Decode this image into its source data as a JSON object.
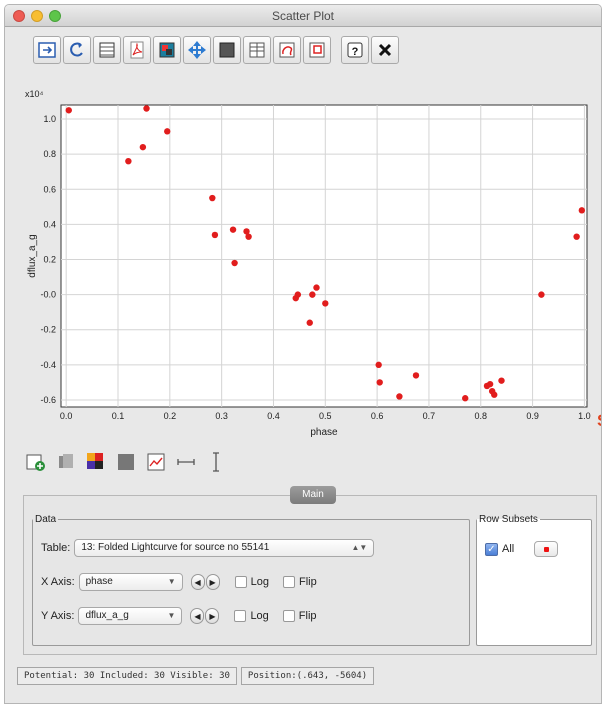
{
  "window": {
    "title": "Scatter Plot"
  },
  "toolbar": {
    "buttons": [
      {
        "icon": "replot-icon"
      },
      {
        "icon": "rescale-icon"
      },
      {
        "icon": "axis-grid-icon"
      },
      {
        "icon": "pdf-export-icon"
      },
      {
        "icon": "image-export-icon"
      },
      {
        "icon": "navigate-icon"
      },
      {
        "icon": "fill-mode-icon"
      },
      {
        "icon": "subset-icon"
      },
      {
        "icon": "blob-draw-icon"
      },
      {
        "icon": "region-select-icon"
      },
      {
        "icon": "help-icon"
      },
      {
        "icon": "close-icon"
      }
    ]
  },
  "chart_data": {
    "type": "scatter",
    "title": "",
    "xlabel": "phase",
    "ylabel": "dflux_a_g",
    "y_multiplier": "x10⁴",
    "xlim": [
      -0.01,
      1.005
    ],
    "ylim": [
      -0.64,
      1.08
    ],
    "x_ticks": [
      "0.0",
      "0.1",
      "0.2",
      "0.3",
      "0.4",
      "0.5",
      "0.6",
      "0.7",
      "0.8",
      "0.9",
      "1.0"
    ],
    "y_ticks": [
      "1.0",
      "0.8",
      "0.6",
      "0.4",
      "0.2",
      "-0.0",
      "-0.2",
      "-0.4",
      "-0.6"
    ],
    "grid": true,
    "marker_color": "#e11d1d",
    "points": [
      {
        "x": 0.005,
        "y": 1.05
      },
      {
        "x": 0.12,
        "y": 0.76
      },
      {
        "x": 0.148,
        "y": 0.84
      },
      {
        "x": 0.155,
        "y": 1.06
      },
      {
        "x": 0.195,
        "y": 0.93
      },
      {
        "x": 0.282,
        "y": 0.55
      },
      {
        "x": 0.287,
        "y": 0.34
      },
      {
        "x": 0.322,
        "y": 0.37
      },
      {
        "x": 0.325,
        "y": 0.18
      },
      {
        "x": 0.348,
        "y": 0.36
      },
      {
        "x": 0.352,
        "y": 0.33
      },
      {
        "x": 0.443,
        "y": -0.02
      },
      {
        "x": 0.447,
        "y": 0.0
      },
      {
        "x": 0.47,
        "y": -0.16
      },
      {
        "x": 0.475,
        "y": 0.0
      },
      {
        "x": 0.483,
        "y": 0.04
      },
      {
        "x": 0.5,
        "y": -0.05
      },
      {
        "x": 0.603,
        "y": -0.4
      },
      {
        "x": 0.605,
        "y": -0.5
      },
      {
        "x": 0.643,
        "y": -0.58
      },
      {
        "x": 0.675,
        "y": -0.46
      },
      {
        "x": 0.77,
        "y": -0.59
      },
      {
        "x": 0.812,
        "y": -0.52
      },
      {
        "x": 0.818,
        "y": -0.51
      },
      {
        "x": 0.822,
        "y": -0.55
      },
      {
        "x": 0.826,
        "y": -0.57
      },
      {
        "x": 0.84,
        "y": -0.49
      },
      {
        "x": 0.917,
        "y": -0.0
      },
      {
        "x": 0.985,
        "y": 0.33
      },
      {
        "x": 0.995,
        "y": 0.48
      }
    ]
  },
  "toolbar2": {
    "buttons": [
      {
        "icon": "add-layer-icon"
      },
      {
        "icon": "layer-stack-icon"
      },
      {
        "icon": "color-map-icon"
      },
      {
        "icon": "density-icon"
      },
      {
        "icon": "fit-line-icon"
      },
      {
        "icon": "x-error-icon"
      },
      {
        "icon": "y-error-icon"
      }
    ]
  },
  "panel": {
    "tab_label": "Main",
    "data_legend": "Data",
    "table_label": "Table:",
    "table_value": "13: Folded Lightcurve for source no 55141",
    "x_axis_label": "X Axis:",
    "x_axis_value": "phase",
    "y_axis_label": "Y Axis:",
    "y_axis_value": "dflux_a_g",
    "log_label": "Log",
    "flip_label": "Flip",
    "subsets_legend": "Row Subsets",
    "subset_all_label": "All"
  },
  "status": {
    "counts": "Potential: 30 Included: 30 Visible: 30",
    "position": "Position:(.643, -5604)"
  },
  "side_letter": "S"
}
